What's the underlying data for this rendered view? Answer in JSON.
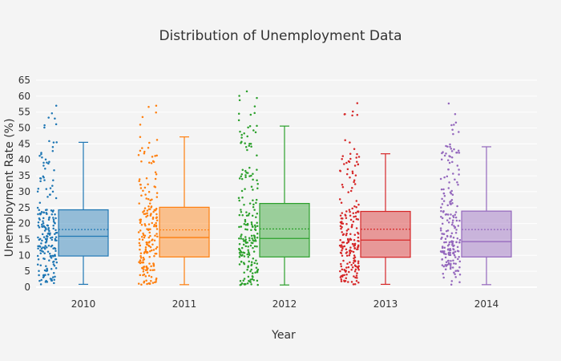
{
  "chart_data": {
    "type": "box",
    "title": "Distribution of Unemployment Data",
    "xlabel": "Year",
    "ylabel": "Unemployment Rate (%)",
    "ylim": [
      0,
      65
    ],
    "yticks": [
      0,
      5,
      10,
      15,
      20,
      25,
      30,
      35,
      40,
      45,
      50,
      55,
      60,
      65
    ],
    "grid": true,
    "boxpoints": "all (jittered)",
    "categories": [
      "2010",
      "2011",
      "2012",
      "2013",
      "2014"
    ],
    "series": [
      {
        "category": "2010",
        "color": "#1f77b4",
        "min": 0.9,
        "q1": 9.8,
        "median": 16.0,
        "mean": 18.1,
        "q3": 24.3,
        "max": 45.5,
        "point_max": 57.0
      },
      {
        "category": "2011",
        "color": "#ff7f0e",
        "min": 0.8,
        "q1": 9.5,
        "median": 15.6,
        "mean": 18.0,
        "q3": 25.1,
        "max": 47.2,
        "point_max": 57.0
      },
      {
        "category": "2012",
        "color": "#2ca02c",
        "min": 0.7,
        "q1": 9.5,
        "median": 15.3,
        "mean": 18.3,
        "q3": 26.3,
        "max": 50.6,
        "point_max": 61.5
      },
      {
        "category": "2013",
        "color": "#d62728",
        "min": 0.9,
        "q1": 9.4,
        "median": 14.8,
        "mean": 18.2,
        "q3": 23.8,
        "max": 41.9,
        "point_max": 57.8
      },
      {
        "category": "2014",
        "color": "#9467bd",
        "min": 0.8,
        "q1": 9.5,
        "median": 14.3,
        "mean": 18.1,
        "q3": 23.9,
        "max": 44.1,
        "point_max": 57.7
      }
    ]
  }
}
